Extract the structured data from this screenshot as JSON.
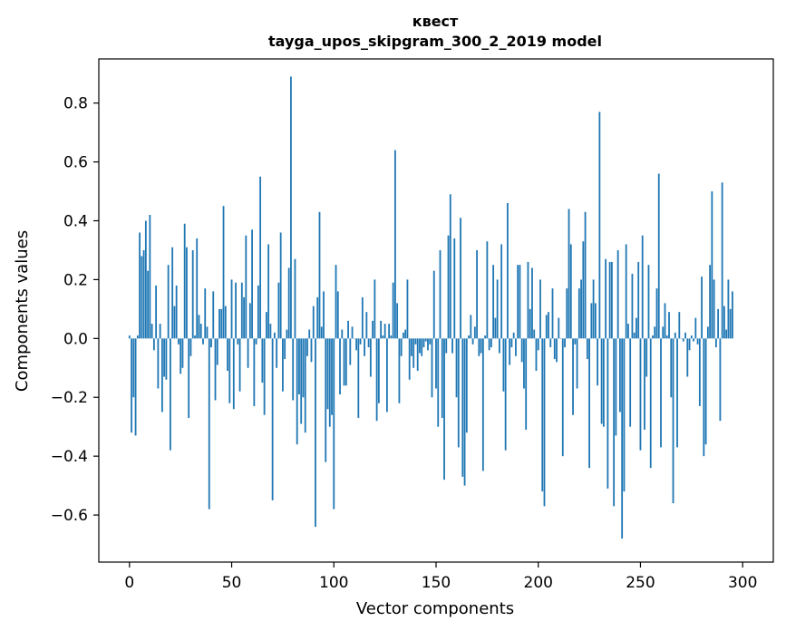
{
  "chart_data": {
    "type": "bar",
    "title": "квест",
    "subtitle": "tayga_upos_skipgram_300_2_2019 model",
    "xlabel": "Vector components",
    "ylabel": "Components values",
    "xlim": [
      -15,
      315
    ],
    "ylim": [
      -0.76,
      0.95
    ],
    "xticks": [
      0,
      50,
      100,
      150,
      200,
      250,
      300
    ],
    "yticks": [
      -0.6,
      -0.4,
      -0.2,
      0.0,
      0.2,
      0.4,
      0.6,
      0.8
    ],
    "xtick_labels": [
      "0",
      "50",
      "100",
      "150",
      "200",
      "250",
      "300"
    ],
    "ytick_labels": [
      "−0.6",
      "−0.4",
      "−0.2",
      "0.0",
      "0.2",
      "0.4",
      "0.6",
      "0.8"
    ],
    "grid": false,
    "bar_color": "#1f77b4",
    "series": [
      {
        "values": [
          0.01,
          -0.32,
          -0.2,
          -0.33,
          0.01,
          0.36,
          0.28,
          0.3,
          0.4,
          0.23,
          0.42,
          0.05,
          -0.04,
          0.18,
          -0.17,
          0.05,
          -0.25,
          -0.13,
          -0.14,
          0.25,
          -0.38,
          0.31,
          0.11,
          0.18,
          -0.02,
          -0.12,
          -0.1,
          0.39,
          0.31,
          -0.27,
          -0.06,
          0.3,
          0.01,
          0.34,
          0.08,
          0.05,
          -0.02,
          0.17,
          0.04,
          -0.58,
          -0.03,
          0.16,
          -0.21,
          -0.09,
          0.1,
          0.1,
          0.45,
          0.11,
          -0.11,
          -0.22,
          0.2,
          -0.24,
          0.19,
          -0.02,
          -0.18,
          0.19,
          0.14,
          0.35,
          -0.1,
          0.12,
          0.37,
          -0.23,
          -0.02,
          0.18,
          0.55,
          -0.15,
          -0.26,
          0.09,
          0.32,
          0.05,
          -0.55,
          0.02,
          -0.1,
          0.19,
          0.36,
          -0.18,
          -0.07,
          0.03,
          0.24,
          0.89,
          -0.21,
          0.27,
          -0.36,
          -0.19,
          -0.29,
          -0.2,
          -0.32,
          -0.06,
          0.03,
          -0.08,
          0.11,
          -0.64,
          0.14,
          0.43,
          0.04,
          0.16,
          -0.42,
          -0.24,
          -0.3,
          -0.26,
          -0.58,
          0.25,
          0.16,
          -0.19,
          0.03,
          -0.16,
          -0.16,
          0.06,
          -0.09,
          0.04,
          0.0,
          -0.04,
          -0.27,
          -0.02,
          0.14,
          -0.06,
          0.09,
          -0.03,
          -0.13,
          0.06,
          0.2,
          -0.28,
          -0.22,
          0.06,
          0.01,
          0.05,
          -0.25,
          0.05,
          0.01,
          0.19,
          0.64,
          0.12,
          -0.22,
          -0.06,
          0.02,
          0.03,
          0.2,
          -0.14,
          -0.06,
          -0.1,
          -0.02,
          -0.11,
          -0.05,
          -0.06,
          -0.03,
          -0.01,
          -0.04,
          -0.02,
          -0.2,
          0.23,
          -0.17,
          -0.3,
          0.3,
          -0.27,
          -0.48,
          -0.05,
          0.35,
          0.49,
          -0.05,
          0.34,
          -0.2,
          -0.37,
          0.41,
          -0.47,
          -0.5,
          -0.32,
          0.01,
          0.08,
          -0.02,
          0.04,
          0.3,
          -0.06,
          -0.05,
          -0.45,
          0.01,
          0.33,
          -0.04,
          -0.03,
          0.25,
          0.07,
          0.2,
          -0.05,
          0.32,
          -0.18,
          -0.38,
          0.46,
          -0.09,
          -0.03,
          0.02,
          -0.06,
          0.25,
          0.25,
          -0.08,
          -0.17,
          -0.31,
          0.26,
          0.1,
          0.24,
          0.03,
          -0.11,
          -0.04,
          0.2,
          -0.52,
          -0.57,
          0.08,
          0.09,
          -0.03,
          0.17,
          -0.07,
          -0.08,
          0.07,
          0.0,
          -0.4,
          -0.03,
          0.17,
          0.44,
          0.32,
          -0.26,
          -0.02,
          -0.17,
          0.17,
          0.2,
          0.33,
          0.43,
          -0.07,
          -0.44,
          0.12,
          0.2,
          0.12,
          -0.16,
          0.77,
          -0.29,
          -0.3,
          0.27,
          -0.51,
          0.26,
          0.26,
          -0.57,
          -0.33,
          0.3,
          -0.25,
          -0.68,
          -0.52,
          0.32,
          0.05,
          -0.3,
          0.22,
          0.02,
          0.07,
          0.26,
          -0.38,
          0.35,
          -0.31,
          -0.13,
          0.25,
          -0.44,
          0.01,
          0.04,
          0.17,
          0.56,
          -0.37,
          0.04,
          0.12,
          0.01,
          0.09,
          -0.2,
          -0.56,
          0.02,
          -0.37,
          0.09,
          0.0,
          -0.01,
          0.02,
          -0.13,
          -0.04,
          0.01,
          -0.01,
          0.07,
          -0.02,
          -0.23,
          0.21,
          -0.4,
          -0.36,
          0.04,
          0.25,
          0.5,
          0.2,
          -0.03,
          0.1,
          -0.28,
          0.53,
          0.11,
          0.03,
          0.2,
          0.1,
          0.16
        ]
      }
    ]
  }
}
